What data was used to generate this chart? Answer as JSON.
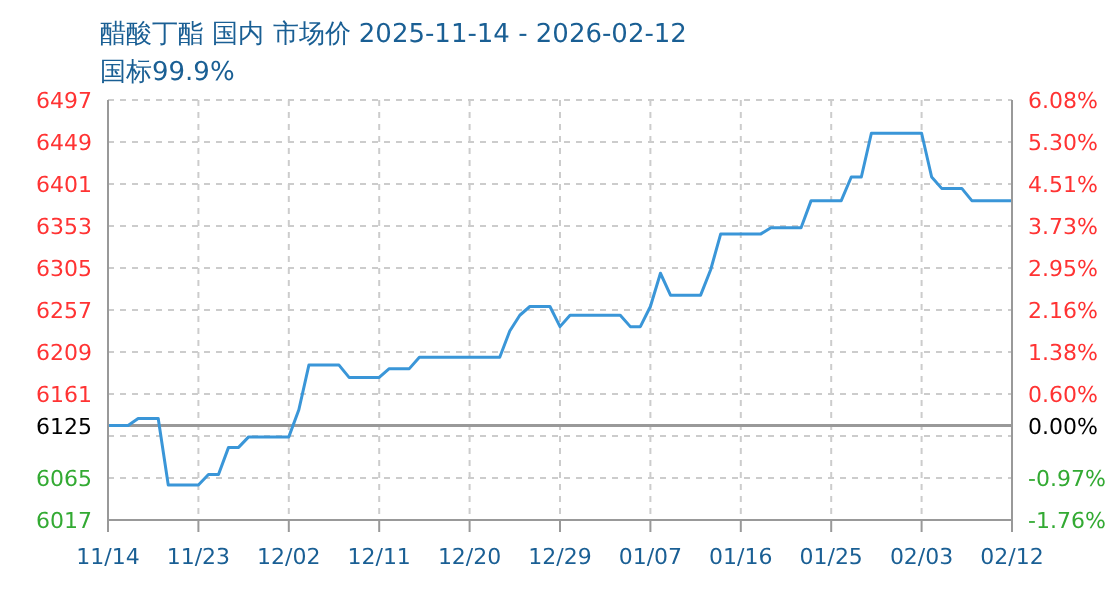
{
  "chart_data": {
    "type": "line",
    "title": "醋酸丁酯 国内 市场价 2025-11-14 - 2026-02-12",
    "subtitle": "国标99.9%",
    "x": [
      "2025-11-14",
      "2025-11-16",
      "2025-11-17",
      "2025-11-19",
      "2025-11-20",
      "2025-11-23",
      "2025-11-24",
      "2025-11-25",
      "2025-11-26",
      "2025-11-27",
      "2025-11-28",
      "2025-12-02",
      "2025-12-03",
      "2025-12-04",
      "2025-12-07",
      "2025-12-08",
      "2025-12-11",
      "2025-12-12",
      "2025-12-14",
      "2025-12-15",
      "2025-12-23",
      "2025-12-24",
      "2025-12-25",
      "2025-12-26",
      "2025-12-28",
      "2025-12-29",
      "2025-12-30",
      "2026-01-04",
      "2026-01-05",
      "2026-01-06",
      "2026-01-07",
      "2026-01-08",
      "2026-01-09",
      "2026-01-12",
      "2026-01-13",
      "2026-01-14",
      "2026-01-18",
      "2026-01-19",
      "2026-01-22",
      "2026-01-23",
      "2026-01-26",
      "2026-01-27",
      "2026-01-28",
      "2026-01-29",
      "2026-02-03",
      "2026-02-04",
      "2026-02-05",
      "2026-02-07",
      "2026-02-08",
      "2026-02-12"
    ],
    "series": [
      {
        "color": "#3a96d8",
        "values": [
          6125,
          6125,
          6133,
          6133,
          6057,
          6057,
          6069,
          6069,
          6100,
          6100,
          6112,
          6112,
          6143,
          6194,
          6194,
          6180,
          6180,
          6190,
          6190,
          6203,
          6203,
          6233,
          6251,
          6261,
          6261,
          6238,
          6251,
          6251,
          6238,
          6238,
          6261,
          6299,
          6274,
          6274,
          6303,
          6344,
          6344,
          6351,
          6351,
          6382,
          6382,
          6409,
          6409,
          6459,
          6459,
          6409,
          6396,
          6396,
          6382,
          6382
        ]
      }
    ],
    "xlim": [
      "2025-11-14",
      "2026-02-12"
    ],
    "xticks": [
      {
        "value": "2025-11-14",
        "label": "11/14"
      },
      {
        "value": "2025-11-23",
        "label": "11/23"
      },
      {
        "value": "2025-12-02",
        "label": "12/02"
      },
      {
        "value": "2025-12-11",
        "label": "12/11"
      },
      {
        "value": "2025-12-20",
        "label": "12/20"
      },
      {
        "value": "2025-12-29",
        "label": "12/29"
      },
      {
        "value": "2026-01-07",
        "label": "01/07"
      },
      {
        "value": "2026-01-16",
        "label": "01/16"
      },
      {
        "value": "2026-01-25",
        "label": "01/25"
      },
      {
        "value": "2026-02-03",
        "label": "02/03"
      },
      {
        "value": "2026-02-12",
        "label": "02/12"
      }
    ],
    "ylim": [
      6017,
      6497
    ],
    "yticks": [
      6017,
      6065,
      {
        "value": 6113,
        "label": null
      },
      6125,
      6161,
      6209,
      6257,
      6305,
      6353,
      6401,
      6449,
      6497
    ],
    "y2lim": [
      -1.76,
      6.08
    ],
    "y2ticks": [
      {
        "value": -1.76,
        "label": "-1.76%"
      },
      {
        "value": -0.97,
        "label": "-0.97%"
      },
      {
        "value": 0,
        "label": "0.00%"
      },
      {
        "value": 0.6,
        "label": "0.60%"
      },
      {
        "value": 1.38,
        "label": "1.38%"
      },
      {
        "value": 2.16,
        "label": "2.16%"
      },
      {
        "value": 2.95,
        "label": "2.95%"
      },
      {
        "value": 3.73,
        "label": "3.73%"
      },
      {
        "value": 4.51,
        "label": "4.51%"
      },
      {
        "value": 5.3,
        "label": "5.30%"
      },
      {
        "value": 6.08,
        "label": "6.08%"
      }
    ],
    "ref_lines": [
      {
        "axis": "y",
        "value": 6125,
        "color": "#999999"
      }
    ],
    "grid": true,
    "marker": "none",
    "line_style": "solid"
  }
}
